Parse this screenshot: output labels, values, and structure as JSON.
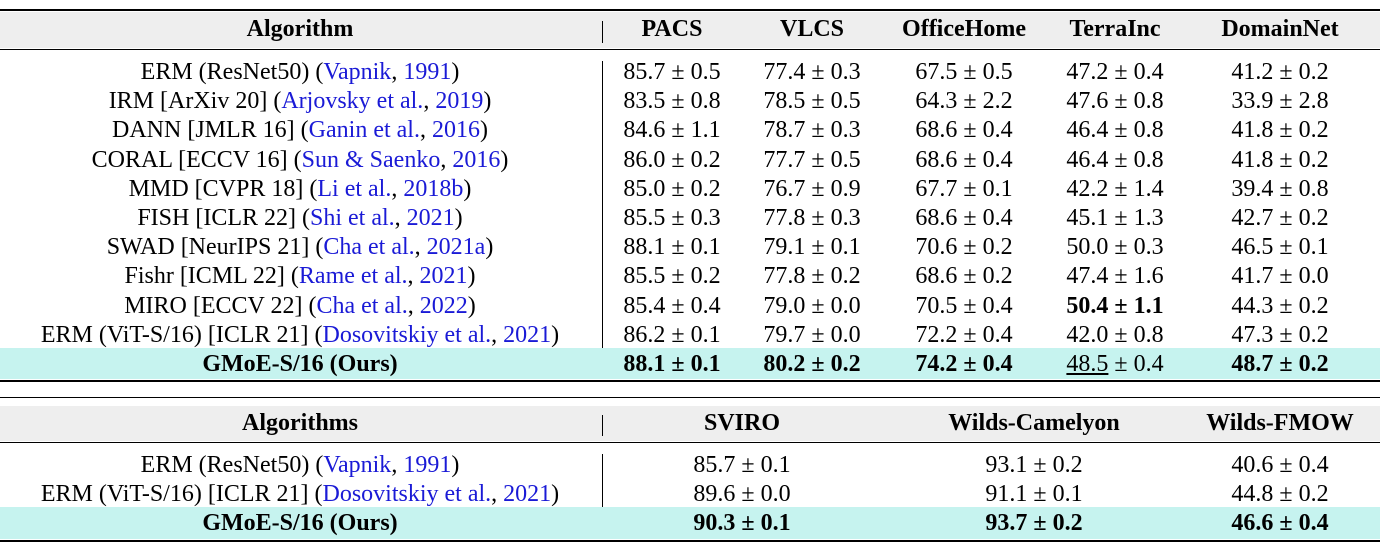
{
  "table1": {
    "header": [
      "Algorithm",
      "PACS",
      "VLCS",
      "OfficeHome",
      "TerraInc",
      "DomainNet"
    ],
    "rows": [
      {
        "name": [
          "ERM (ResNet50) (",
          {
            "link": "Vapnik"
          },
          ", ",
          {
            "link": "1991"
          },
          ")"
        ],
        "cells": [
          [
            "85.7 ± 0.5"
          ],
          [
            "77.4 ± 0.3"
          ],
          [
            "67.5 ± 0.5"
          ],
          [
            "47.2 ± 0.4"
          ],
          [
            "41.2 ± 0.2"
          ]
        ]
      },
      {
        "name": [
          "IRM [ArXiv 20] (",
          {
            "link": "Arjovsky et al."
          },
          ", ",
          {
            "link": "2019"
          },
          ")"
        ],
        "cells": [
          [
            "83.5 ± 0.8"
          ],
          [
            "78.5 ± 0.5"
          ],
          [
            "64.3 ± 2.2"
          ],
          [
            "47.6 ± 0.8"
          ],
          [
            "33.9 ± 2.8"
          ]
        ]
      },
      {
        "name": [
          "DANN [JMLR 16] (",
          {
            "link": "Ganin et al."
          },
          ", ",
          {
            "link": "2016"
          },
          ")"
        ],
        "cells": [
          [
            "84.6 ± 1.1"
          ],
          [
            "78.7 ± 0.3"
          ],
          [
            "68.6 ± 0.4"
          ],
          [
            "46.4 ± 0.8"
          ],
          [
            "41.8 ± 0.2"
          ]
        ]
      },
      {
        "name": [
          "CORAL [ECCV 16] (",
          {
            "link": "Sun & Saenko"
          },
          ", ",
          {
            "link": "2016"
          },
          ")"
        ],
        "cells": [
          [
            "86.0 ± 0.2"
          ],
          [
            "77.7 ± 0.5"
          ],
          [
            "68.6 ± 0.4"
          ],
          [
            "46.4 ± 0.8"
          ],
          [
            "41.8 ± 0.2"
          ]
        ]
      },
      {
        "name": [
          "MMD [CVPR 18] (",
          {
            "link": "Li et al."
          },
          ", ",
          {
            "link": "2018b"
          },
          ")"
        ],
        "cells": [
          [
            "85.0 ± 0.2"
          ],
          [
            "76.7 ± 0.9"
          ],
          [
            "67.7 ± 0.1"
          ],
          [
            "42.2 ± 1.4"
          ],
          [
            "39.4 ± 0.8"
          ]
        ]
      },
      {
        "name": [
          "FISH [ICLR 22] (",
          {
            "link": "Shi et al."
          },
          ", ",
          {
            "link": "2021"
          },
          ")"
        ],
        "cells": [
          [
            "85.5 ± 0.3"
          ],
          [
            "77.8 ± 0.3"
          ],
          [
            "68.6 ± 0.4"
          ],
          [
            "45.1 ± 1.3"
          ],
          [
            "42.7 ± 0.2"
          ]
        ]
      },
      {
        "name": [
          "SWAD [NeurIPS 21] (",
          {
            "link": "Cha et al."
          },
          ", ",
          {
            "link": "2021a"
          },
          ")"
        ],
        "cells": [
          [
            "88.1 ± 0.1"
          ],
          [
            "79.1 ± 0.1"
          ],
          [
            "70.6 ± 0.2"
          ],
          [
            "50.0 ± 0.3"
          ],
          [
            "46.5 ± 0.1"
          ]
        ]
      },
      {
        "name": [
          "Fishr [ICML 22] (",
          {
            "link": "Rame et al."
          },
          ", ",
          {
            "link": "2021"
          },
          ")"
        ],
        "cells": [
          [
            "85.5 ± 0.2"
          ],
          [
            "77.8 ± 0.2"
          ],
          [
            "68.6 ± 0.2"
          ],
          [
            "47.4 ± 1.6"
          ],
          [
            "41.7 ± 0.0"
          ]
        ]
      },
      {
        "name": [
          "MIRO [ECCV 22] (",
          {
            "link": "Cha et al."
          },
          ", ",
          {
            "link": "2022"
          },
          ")"
        ],
        "cells": [
          [
            "85.4 ± 0.4"
          ],
          [
            "79.0 ± 0.0"
          ],
          [
            "70.5 ± 0.4"
          ],
          [
            {
              "b": "50.4 ± 1.1"
            }
          ],
          [
            "44.3 ± 0.2"
          ]
        ]
      },
      {
        "name": [
          "ERM (ViT-S/16) [ICLR 21] (",
          {
            "link": "Dosovitskiy et al."
          },
          ", ",
          {
            "link": "2021"
          },
          ")"
        ],
        "cells": [
          [
            "86.2 ± 0.1"
          ],
          [
            "79.7 ± 0.0"
          ],
          [
            "72.2 ± 0.4"
          ],
          [
            "42.0 ± 0.8"
          ],
          [
            "47.3 ± 0.2"
          ]
        ]
      },
      {
        "name": [
          {
            "b": "GMoE-S/16 (Ours)"
          }
        ],
        "highlight": true,
        "cells": [
          [
            {
              "b": "88.1 ± 0.1"
            }
          ],
          [
            {
              "b": "80.2 ± 0.2"
            }
          ],
          [
            {
              "b": "74.2 ± 0.4"
            }
          ],
          [
            {
              "u": "48.5"
            },
            " ± 0.4"
          ],
          [
            {
              "b": "48.7 ± 0.2"
            }
          ]
        ]
      }
    ]
  },
  "table2": {
    "header": [
      "Algorithms",
      "SVIRO",
      "Wilds-Camelyon",
      "Wilds-FMOW"
    ],
    "rows": [
      {
        "name": [
          "ERM (ResNet50) (",
          {
            "link": "Vapnik"
          },
          ", ",
          {
            "link": "1991"
          },
          ")"
        ],
        "cells": [
          [
            "85.7 ± 0.1"
          ],
          [
            "93.1 ± 0.2"
          ],
          [
            "40.6 ± 0.4"
          ]
        ]
      },
      {
        "name": [
          "ERM (ViT-S/16) [ICLR 21] (",
          {
            "link": "Dosovitskiy et al."
          },
          ", ",
          {
            "link": "2021"
          },
          ")"
        ],
        "cells": [
          [
            "89.6 ± 0.0"
          ],
          [
            "91.1 ± 0.1"
          ],
          [
            "44.8 ± 0.2"
          ]
        ]
      },
      {
        "name": [
          {
            "b": "GMoE-S/16 (Ours)"
          }
        ],
        "highlight": true,
        "cells": [
          [
            {
              "b": "90.3 ± 0.1"
            }
          ],
          [
            {
              "b": "93.7 ± 0.2"
            }
          ],
          [
            {
              "b": "46.6 ± 0.4"
            }
          ]
        ]
      }
    ]
  }
}
